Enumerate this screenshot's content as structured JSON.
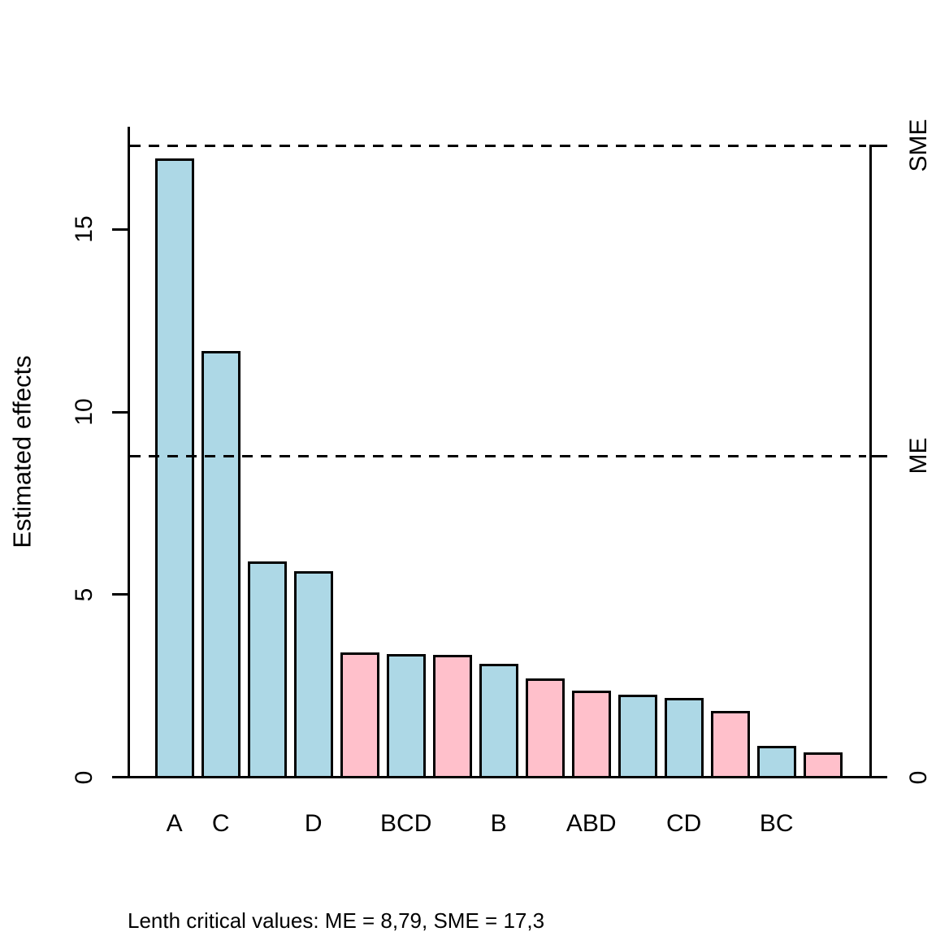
{
  "chart_data": {
    "type": "bar",
    "title": "",
    "ylabel": "Estimated effects",
    "xlabel": "",
    "caption": "Lenth critical values: ME = 8,79, SME = 17,3",
    "categories": [
      "A",
      "C",
      "",
      "D",
      "",
      "BCD",
      "",
      "B",
      "",
      "ABD",
      "",
      "CD",
      "",
      "BC",
      ""
    ],
    "values": [
      16.95,
      11.66,
      5.9,
      5.64,
      3.42,
      3.38,
      3.35,
      3.1,
      2.71,
      2.36,
      2.26,
      2.16,
      1.82,
      0.86,
      0.67
    ],
    "bar_colors": [
      "lightblue",
      "lightblue",
      "lightblue",
      "lightblue",
      "pink",
      "lightblue",
      "pink",
      "lightblue",
      "pink",
      "pink",
      "lightblue",
      "lightblue",
      "pink",
      "lightblue",
      "pink"
    ],
    "palette": {
      "lightblue": "#ADD8E6",
      "pink": "#FFC0CB",
      "axis": "#000000"
    },
    "y_ticks": [
      0,
      5,
      10,
      15
    ],
    "ylim": [
      0,
      17.9
    ],
    "grid": false,
    "legend": "none",
    "bar_gap_ratio": 0.2,
    "reference_lines": [
      {
        "label": "SME",
        "value": 17.3,
        "style": "dashed"
      },
      {
        "label": "ME",
        "value": 8.79,
        "style": "dashed"
      }
    ],
    "right_axis_labels": [
      {
        "text": "SME",
        "value": 17.3
      },
      {
        "text": "ME",
        "value": 8.79
      },
      {
        "text": "0",
        "value": 0
      }
    ]
  }
}
